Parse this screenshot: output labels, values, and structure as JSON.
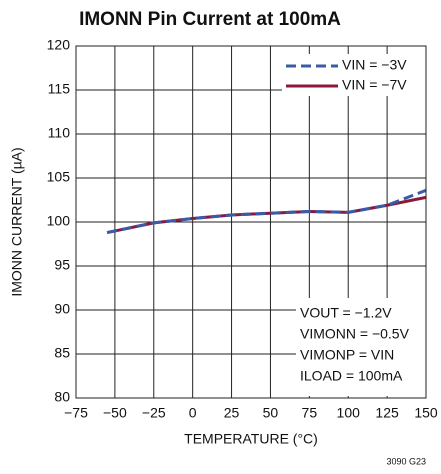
{
  "chart_data": {
    "type": "line",
    "title": "IMONN Pin Current at 100mA",
    "x_label": "TEMPERATURE (°C)",
    "y_label": "IMONN CURRENT (µA)",
    "x": [
      -55,
      -25,
      0,
      25,
      50,
      75,
      100,
      125,
      150
    ],
    "series": [
      {
        "name": "VIN = −7V",
        "color": "#8b1a3a",
        "dashed": false,
        "values": [
          98.8,
          99.9,
          100.4,
          100.8,
          101.0,
          101.2,
          101.1,
          101.9,
          102.8
        ]
      },
      {
        "name": "VIN = −3V",
        "color": "#3a5ba8",
        "dashed": true,
        "values": [
          98.8,
          99.9,
          100.4,
          100.8,
          101.0,
          101.2,
          101.1,
          101.9,
          103.6
        ]
      }
    ],
    "xlim": [
      -75,
      150
    ],
    "xticks": [
      {
        "value": -75,
        "label": "−75"
      },
      {
        "value": -50,
        "label": "−50"
      },
      {
        "value": -25,
        "label": "−25"
      },
      0,
      25,
      50,
      75,
      100,
      125,
      150
    ],
    "ylim": [
      80,
      120
    ],
    "yticks": [
      80,
      85,
      90,
      95,
      100,
      105,
      110,
      115,
      120
    ],
    "grid": true,
    "legend": "upper right",
    "annotations": [
      "VOUT = −1.2V",
      "VIMONN = −0.5V",
      "VIMONP = VIN",
      "ILOAD = 100mA"
    ],
    "footnote": "3090 G23"
  }
}
